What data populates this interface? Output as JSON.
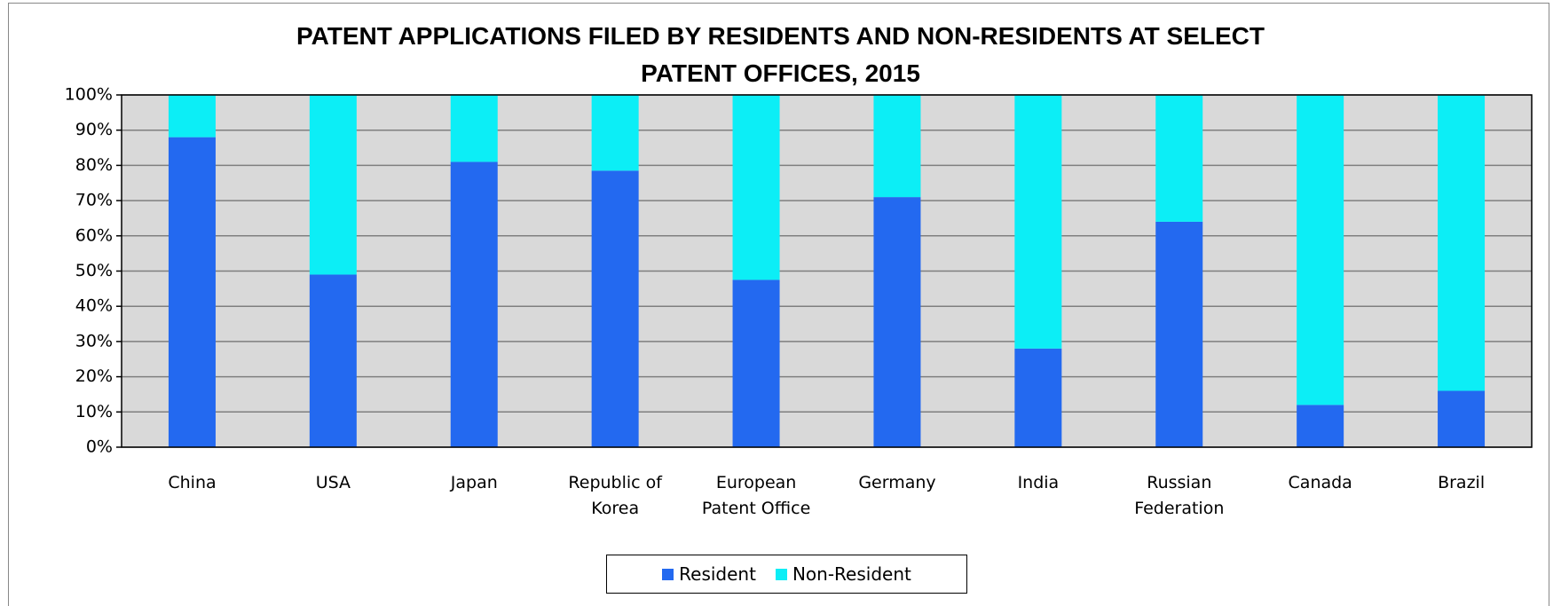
{
  "chart_data": {
    "type": "stacked_bar",
    "title": "PATENT APPLICATIONS FILED BY RESIDENTS AND NON-RESIDENTS AT SELECT\nPATENT OFFICES, 2015",
    "categories": [
      "China",
      "USA",
      "Japan",
      "Republic of\nKorea",
      "European\nPatent Office",
      "Germany",
      "India",
      "Russian\nFederation",
      "Canada",
      "Brazil"
    ],
    "series": [
      {
        "name": "Resident",
        "color": "#2369f0",
        "values": [
          88,
          49,
          81,
          78.5,
          47.5,
          71,
          28,
          64,
          12,
          16
        ]
      },
      {
        "name": "Non-Resident",
        "color": "#0ceef6",
        "values": [
          12,
          51,
          19,
          21.5,
          52.5,
          29,
          72,
          36,
          88,
          84
        ]
      }
    ],
    "ylim": [
      0,
      100
    ],
    "yticks": [
      {
        "value": 0,
        "label": "0%"
      },
      {
        "value": 10,
        "label": "10%"
      },
      {
        "value": 20,
        "label": "20%"
      },
      {
        "value": 30,
        "label": "30%"
      },
      {
        "value": 40,
        "label": "40%"
      },
      {
        "value": 50,
        "label": "50%"
      },
      {
        "value": 60,
        "label": "60%"
      },
      {
        "value": 70,
        "label": "70%"
      },
      {
        "value": 80,
        "label": "80%"
      },
      {
        "value": 90,
        "label": "90%"
      },
      {
        "value": 100,
        "label": "100%"
      }
    ],
    "grid": true,
    "legend": "bottom"
  }
}
